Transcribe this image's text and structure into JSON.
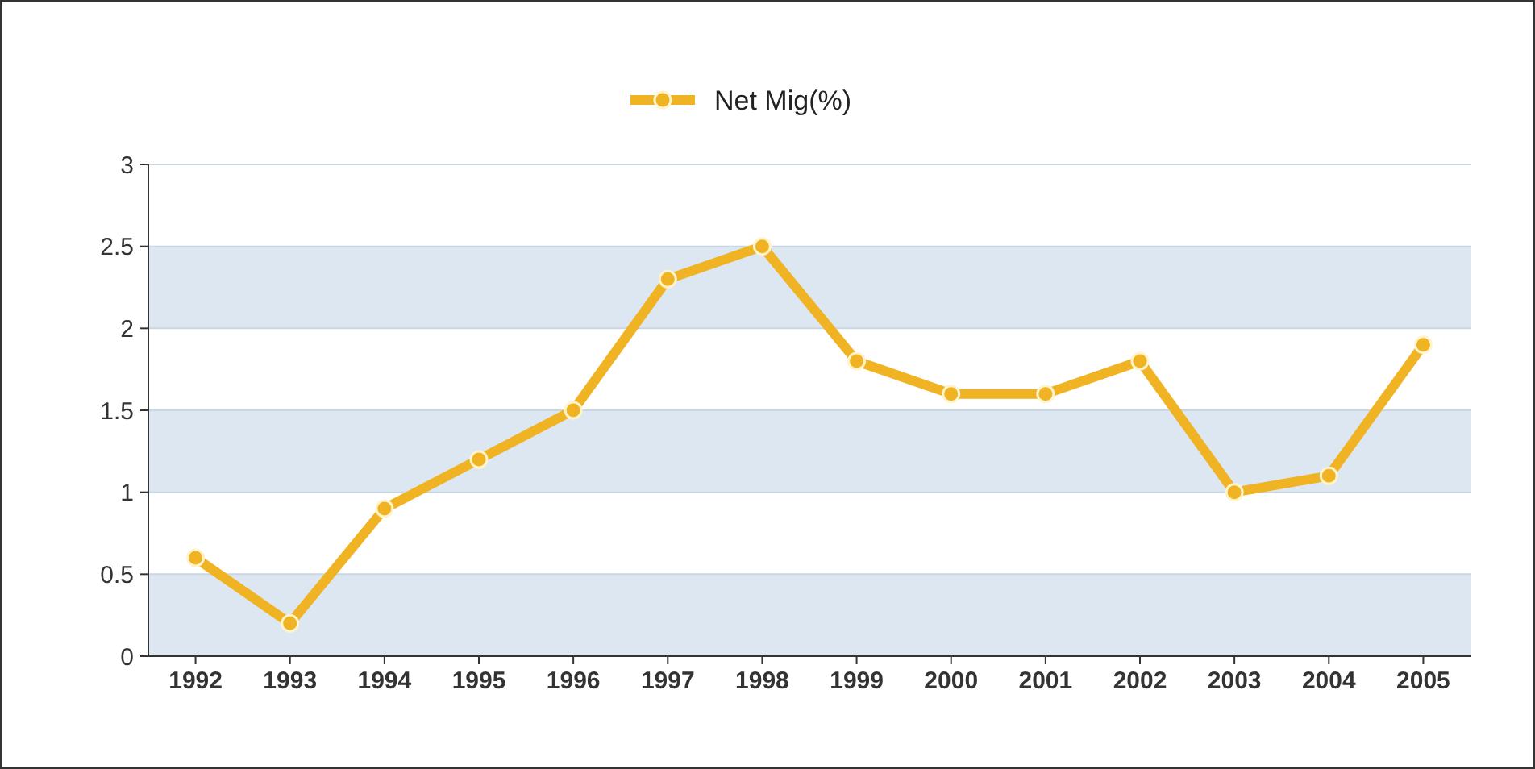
{
  "chart_data": {
    "type": "line",
    "categories": [
      "1992",
      "1993",
      "1994",
      "1995",
      "1996",
      "1997",
      "1998",
      "1999",
      "2000",
      "2001",
      "2002",
      "2003",
      "2004",
      "2005"
    ],
    "series": [
      {
        "name": "Net Mig(%)",
        "color": "#f0b323",
        "values": [
          0.6,
          0.2,
          0.9,
          1.2,
          1.5,
          2.3,
          2.5,
          1.8,
          1.6,
          1.6,
          1.8,
          1.0,
          1.1,
          1.9
        ]
      }
    ],
    "ylim": [
      0,
      3
    ],
    "yticks": [
      0,
      0.5,
      1,
      1.5,
      2,
      2.5,
      3
    ],
    "grid": "y",
    "legend": "top",
    "marker": "circle",
    "line_style": "solid"
  }
}
